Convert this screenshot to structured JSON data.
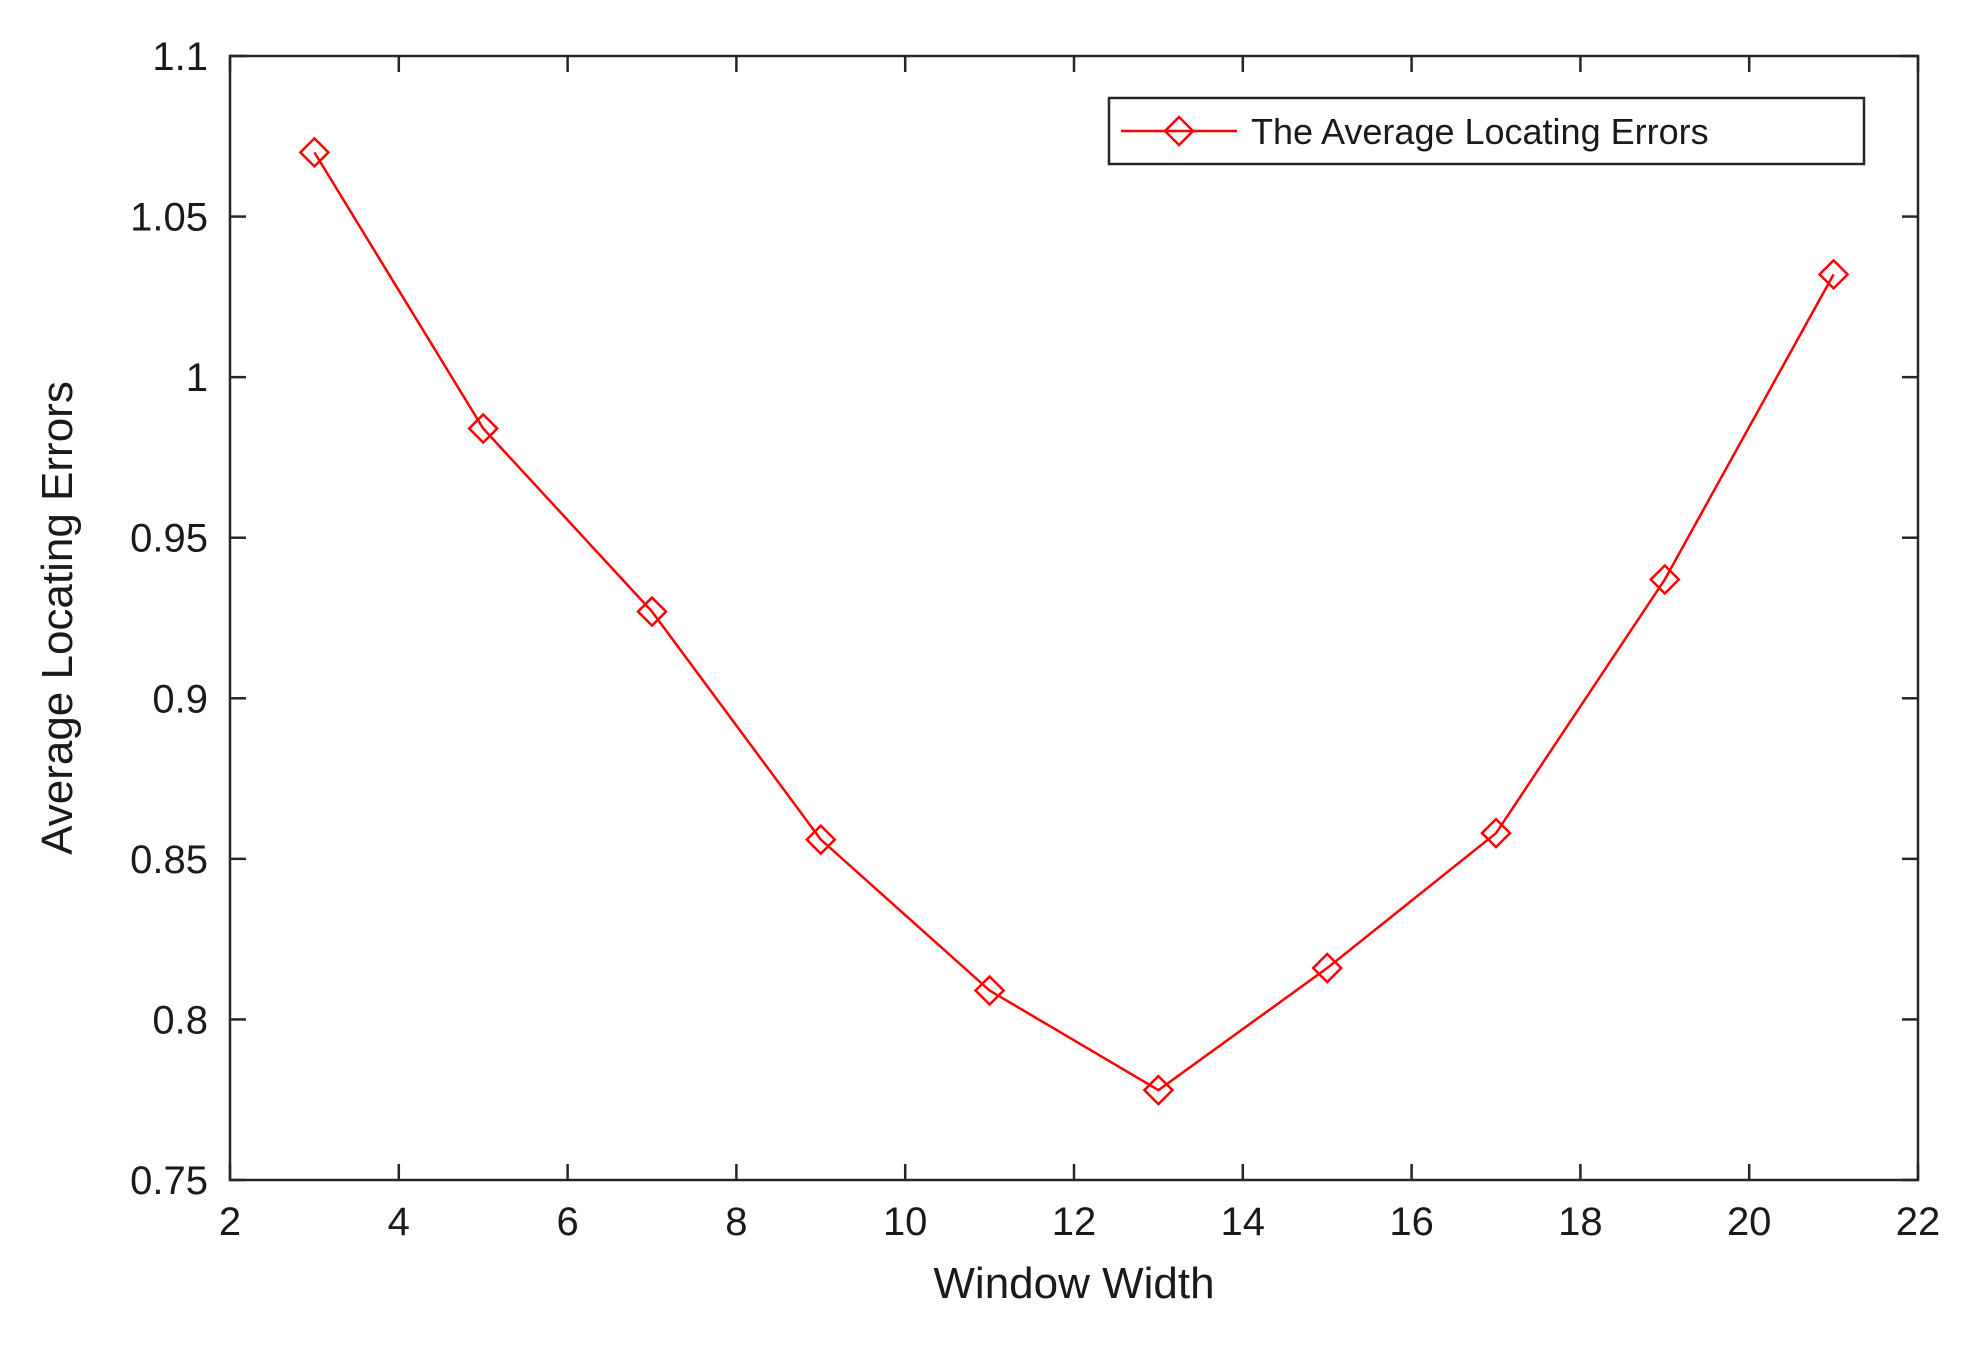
{
  "chart_data": {
    "type": "line",
    "title": "",
    "xlabel": "Window Width",
    "ylabel": "Average Locating Errors",
    "xlim": [
      2,
      22
    ],
    "ylim": [
      0.75,
      1.1
    ],
    "xticks": [
      2,
      4,
      6,
      8,
      10,
      12,
      14,
      16,
      18,
      20,
      22
    ],
    "xtick_labels": [
      "2",
      "4",
      "6",
      "8",
      "10",
      "12",
      "14",
      "16",
      "18",
      "20",
      "22"
    ],
    "yticks": [
      0.75,
      0.8,
      0.85,
      0.9,
      0.95,
      1.0,
      1.05,
      1.1
    ],
    "ytick_labels": [
      "0.75",
      "0.8",
      "0.85",
      "0.9",
      "0.95",
      "1",
      "1.05",
      "1.1"
    ],
    "grid": false,
    "legend_position": "top-right",
    "series": [
      {
        "name": "The Average Locating Errors",
        "color": "#ff0000",
        "marker": "diamond",
        "x": [
          3,
          5,
          7,
          9,
          11,
          13,
          15,
          17,
          19,
          21
        ],
        "y": [
          1.07,
          0.984,
          0.927,
          0.856,
          0.809,
          0.778,
          0.816,
          0.858,
          0.937,
          1.032
        ]
      }
    ]
  }
}
